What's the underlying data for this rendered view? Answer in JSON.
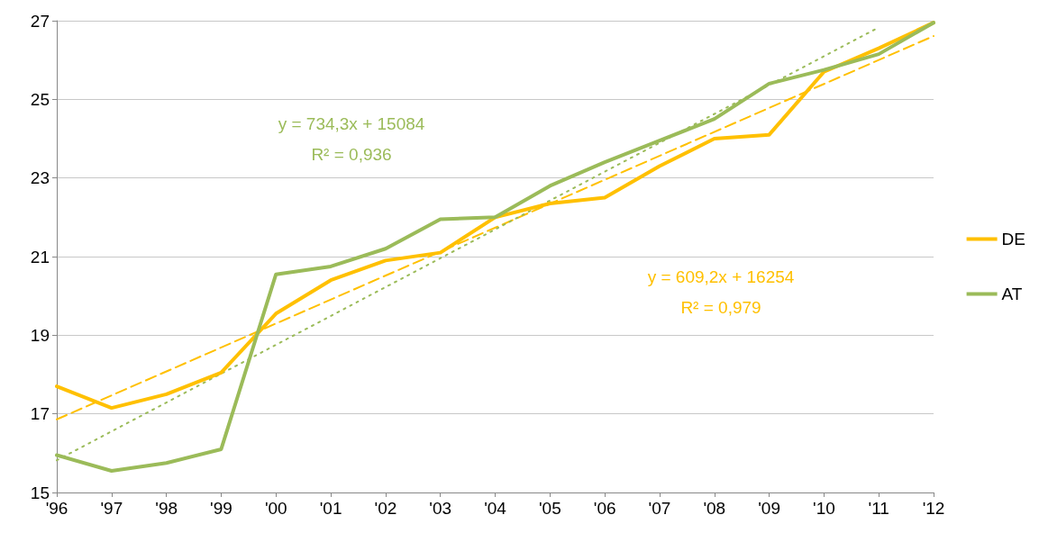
{
  "chart_data": {
    "type": "line",
    "categories": [
      "'96",
      "'97",
      "'98",
      "'99",
      "'00",
      "'01",
      "'02",
      "'03",
      "'04",
      "'05",
      "'06",
      "'07",
      "'08",
      "'09",
      "'10",
      "'11",
      "'12"
    ],
    "series": [
      {
        "name": "DE",
        "color": "#ffc000",
        "values": [
          17.7,
          17.15,
          17.5,
          18.05,
          19.55,
          20.4,
          20.9,
          21.1,
          22.0,
          22.35,
          22.5,
          23.3,
          24.0,
          24.1,
          25.7,
          26.3,
          26.95
        ]
      },
      {
        "name": "AT",
        "color": "#9bbb59",
        "values": [
          15.95,
          15.55,
          15.75,
          16.1,
          20.55,
          20.75,
          21.2,
          21.95,
          22.0,
          22.8,
          23.4,
          23.95,
          24.5,
          25.4,
          25.75,
          26.15,
          26.95
        ]
      },
      {
        "type": "line",
        "color": "#ffc000",
        "line_style": "dashed",
        "x": [
          "'96",
          "'12"
        ],
        "values": [
          16.86,
          26.61
        ]
      },
      {
        "type": "line",
        "color": "#9bbb59",
        "line_style": "dotted",
        "x": [
          "'96",
          "'11"
        ],
        "values": [
          15.82,
          26.83
        ]
      }
    ],
    "ylim": [
      15,
      27
    ],
    "yticks": [
      15,
      17,
      19,
      21,
      23,
      25,
      27
    ],
    "grid": "y",
    "legend": "right",
    "marker": "none",
    "line_style": "solid",
    "annotations": [
      "y = 734,3x + 15084\nR² = 0,936",
      "y = 609,2x + 16254\nR² = 0,979"
    ]
  }
}
